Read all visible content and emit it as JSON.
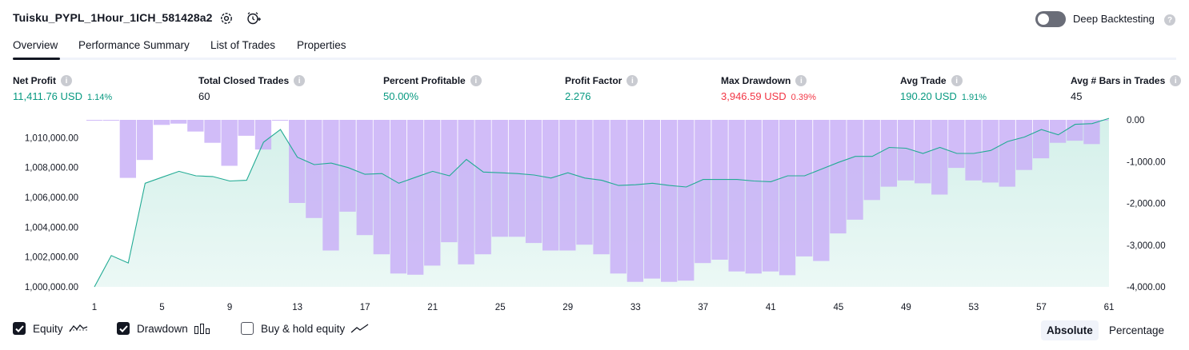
{
  "header": {
    "strategy_title": "Tuisku_PYPL_1Hour_1ICH_581428a2",
    "deep_backtesting_label": "Deep Backtesting",
    "deep_backtesting_enabled": false
  },
  "tabs": [
    {
      "label": "Overview",
      "active": true
    },
    {
      "label": "Performance Summary",
      "active": false
    },
    {
      "label": "List of Trades",
      "active": false
    },
    {
      "label": "Properties",
      "active": false
    }
  ],
  "metrics": [
    {
      "label": "Net Profit",
      "value": "11,411.76 USD",
      "pct": "1.14%",
      "color": "#089981"
    },
    {
      "label": "Total Closed Trades",
      "value": "60",
      "pct": "",
      "color": "#131722"
    },
    {
      "label": "Percent Profitable",
      "value": "50.00%",
      "pct": "",
      "color": "#089981"
    },
    {
      "label": "Profit Factor",
      "value": "2.276",
      "pct": "",
      "color": "#089981"
    },
    {
      "label": "Max Drawdown",
      "value": "3,946.59 USD",
      "pct": "0.39%",
      "color": "#f23645"
    },
    {
      "label": "Avg Trade",
      "value": "190.20 USD",
      "pct": "1.91%",
      "color": "#089981"
    },
    {
      "label": "Avg # Bars in Trades",
      "value": "45",
      "pct": "",
      "color": "#131722"
    }
  ],
  "legend": {
    "equity": {
      "label": "Equity",
      "checked": true
    },
    "drawdown": {
      "label": "Drawdown",
      "checked": true
    },
    "buy_hold": {
      "label": "Buy & hold equity",
      "checked": false
    }
  },
  "mode": {
    "absolute_label": "Absolute",
    "percentage_label": "Percentage",
    "selected": "Absolute"
  },
  "colors": {
    "equity_line": "#22ab94",
    "equity_fill": "#d4f0ea",
    "drawdown_fill": "#c9b0f7",
    "positive": "#089981",
    "negative": "#f23645"
  },
  "chart_data": {
    "type": "area",
    "x_ticks": [
      "1",
      "5",
      "9",
      "13",
      "17",
      "21",
      "25",
      "29",
      "33",
      "37",
      "41",
      "45",
      "49",
      "53",
      "57",
      "61"
    ],
    "x_range": [
      1,
      61
    ],
    "left_axis": {
      "ticks": [
        "1,000,000.00",
        "1,002,000.00",
        "1,004,000.00",
        "1,006,000.00",
        "1,008,000.00",
        "1,010,000.00"
      ],
      "range": [
        1000000,
        1011200
      ]
    },
    "right_axis": {
      "ticks": [
        "0.00",
        "-1,000.00",
        "-2,000.00",
        "-3,000.00",
        "-4,000.00"
      ],
      "range": [
        -4000,
        0
      ]
    },
    "series": [
      {
        "name": "Equity",
        "type": "area",
        "axis": "left",
        "x": [
          1,
          2,
          3,
          4,
          5,
          6,
          7,
          8,
          9,
          10,
          11,
          12,
          13,
          14,
          15,
          16,
          17,
          18,
          19,
          20,
          21,
          22,
          23,
          24,
          25,
          26,
          27,
          28,
          29,
          30,
          31,
          32,
          33,
          34,
          35,
          36,
          37,
          38,
          39,
          40,
          41,
          42,
          43,
          44,
          45,
          46,
          47,
          48,
          49,
          50,
          51,
          52,
          53,
          54,
          55,
          56,
          57,
          58,
          59,
          60,
          61
        ],
        "values": [
          1000000,
          1002100,
          1001600,
          1006950,
          1007350,
          1007750,
          1007450,
          1007400,
          1007100,
          1007150,
          1009700,
          1010550,
          1008700,
          1008200,
          1008300,
          1008000,
          1007550,
          1007600,
          1006950,
          1007350,
          1007750,
          1007450,
          1008550,
          1007700,
          1007650,
          1007600,
          1007500,
          1007300,
          1007650,
          1007300,
          1007150,
          1006800,
          1006850,
          1006950,
          1006800,
          1006700,
          1007200,
          1007200,
          1007200,
          1007100,
          1007050,
          1007450,
          1007450,
          1007900,
          1008350,
          1008750,
          1008750,
          1009350,
          1009300,
          1008950,
          1009350,
          1008950,
          1008950,
          1009150,
          1009750,
          1010050,
          1010550,
          1010200,
          1010900,
          1010950,
          1011300
        ]
      },
      {
        "name": "Drawdown",
        "type": "bar",
        "axis": "right",
        "x": [
          1,
          2,
          3,
          4,
          5,
          6,
          7,
          8,
          9,
          10,
          11,
          12,
          13,
          14,
          15,
          16,
          17,
          18,
          19,
          20,
          21,
          22,
          23,
          24,
          25,
          26,
          27,
          28,
          29,
          30,
          31,
          32,
          33,
          34,
          35,
          36,
          37,
          38,
          39,
          40,
          41,
          42,
          43,
          44,
          45,
          46,
          47,
          48,
          49,
          50,
          51,
          52,
          53,
          54,
          55,
          56,
          57,
          58,
          59,
          60,
          61
        ],
        "values": [
          -10,
          -10,
          -1390,
          -960,
          -120,
          -90,
          -280,
          -550,
          -1100,
          -380,
          -710,
          -10,
          -1990,
          -2350,
          -3130,
          -2200,
          -2760,
          -3220,
          -3680,
          -3710,
          -3490,
          -2930,
          -3460,
          -3220,
          -2800,
          -2800,
          -2950,
          -3130,
          -3130,
          -2990,
          -3220,
          -3680,
          -3880,
          -3800,
          -3880,
          -3850,
          -3430,
          -3350,
          -3630,
          -3680,
          -3630,
          -3720,
          -3270,
          -3380,
          -2720,
          -2390,
          -1920,
          -1600,
          -1450,
          -1520,
          -1790,
          -1150,
          -1450,
          -1500,
          -1600,
          -1200,
          -920,
          -550,
          -500,
          -580,
          -10
        ]
      }
    ]
  }
}
